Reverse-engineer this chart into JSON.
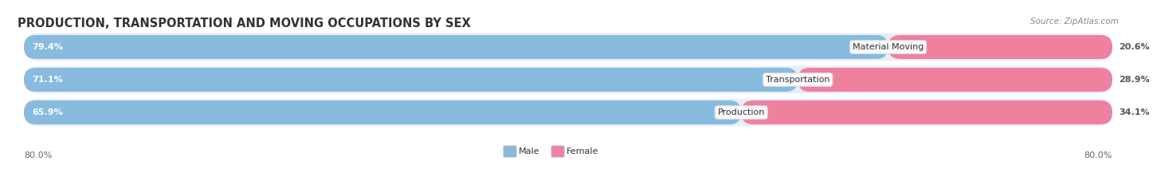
{
  "title": "PRODUCTION, TRANSPORTATION AND MOVING OCCUPATIONS BY SEX",
  "source": "Source: ZipAtlas.com",
  "categories": [
    "Material Moving",
    "Transportation",
    "Production"
  ],
  "male_values": [
    79.4,
    71.1,
    65.9
  ],
  "female_values": [
    20.6,
    28.9,
    34.1
  ],
  "male_color": "#88bbdd",
  "female_color": "#f080a0",
  "axis_left_label": "80.0%",
  "axis_right_label": "80.0%",
  "legend_male": "Male",
  "legend_female": "Female",
  "background_color": "#ffffff",
  "bar_track_color": "#e8eef4",
  "title_fontsize": 10.5,
  "source_fontsize": 7.5,
  "bar_label_fontsize": 8,
  "cat_label_fontsize": 8,
  "axis_label_fontsize": 8
}
